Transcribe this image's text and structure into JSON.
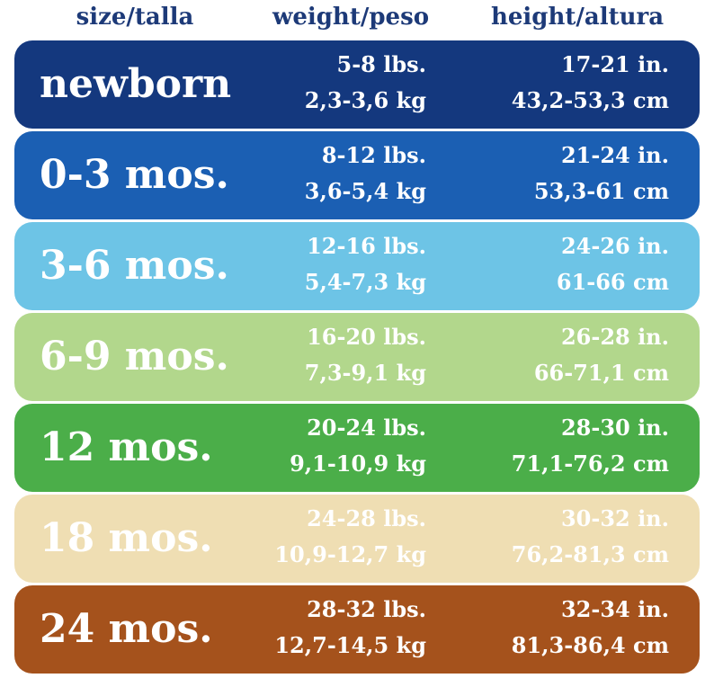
{
  "header": {
    "size": "size/talla",
    "weight": "weight/peso",
    "height": "height/altura"
  },
  "rows": [
    {
      "size": "newborn",
      "weight_lbs": "5-8 lbs.",
      "weight_kg": "2,3-3,6 kg",
      "height_in": "17-21 in.",
      "height_cm": "43,2-53,3 cm"
    },
    {
      "size": "0-3 mos.",
      "weight_lbs": "8-12 lbs.",
      "weight_kg": "3,6-5,4 kg",
      "height_in": "21-24 in.",
      "height_cm": "53,3-61 cm"
    },
    {
      "size": "3-6 mos.",
      "weight_lbs": "12-16 lbs.",
      "weight_kg": "5,4-7,3 kg",
      "height_in": "24-26 in.",
      "height_cm": "61-66 cm"
    },
    {
      "size": "6-9 mos.",
      "weight_lbs": "16-20 lbs.",
      "weight_kg": "7,3-9,1 kg",
      "height_in": "26-28 in.",
      "height_cm": "66-71,1 cm"
    },
    {
      "size": "12 mos.",
      "weight_lbs": "20-24 lbs.",
      "weight_kg": "9,1-10,9 kg",
      "height_in": "28-30 in.",
      "height_cm": "71,1-76,2 cm"
    },
    {
      "size": "18 mos.",
      "weight_lbs": "24-28 lbs.",
      "weight_kg": "10,9-12,7 kg",
      "height_in": "30-32 in.",
      "height_cm": "76,2-81,3 cm"
    },
    {
      "size": "24 mos.",
      "weight_lbs": "28-32 lbs.",
      "weight_kg": "12,7-14,5 kg",
      "height_in": "32-34 in.",
      "height_cm": "81,3-86,4 cm"
    }
  ]
}
